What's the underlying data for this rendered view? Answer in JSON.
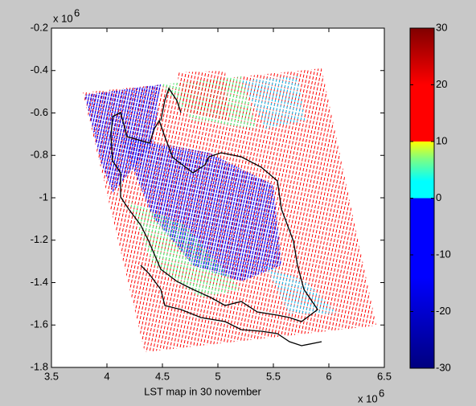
{
  "chart_data": {
    "type": "map",
    "xlabel": "LST map in 30 november",
    "x_multiplier": {
      "base": "x 10",
      "power": "6"
    },
    "y_multiplier": {
      "base": "x 10",
      "power": "6"
    },
    "xlim": [
      3.5,
      6.5
    ],
    "xticks": [
      3.5,
      4,
      4.5,
      5,
      5.5,
      6,
      6.5
    ],
    "ylim": [
      -1.8,
      -0.2
    ],
    "yticks": [
      -1.8,
      -1.6,
      -1.4,
      -1.2,
      -1,
      -0.8,
      -0.6,
      -0.4,
      -0.2
    ],
    "colorbar": {
      "lim": [
        -30,
        30
      ],
      "ticks": [
        -30,
        -20,
        -10,
        0,
        10,
        20,
        30
      ],
      "stops": [
        {
          "value": -30,
          "color": "#00007f"
        },
        {
          "value": -14,
          "color": "#0000ff"
        },
        {
          "value": 0,
          "color": "#0000ff"
        },
        {
          "value": 0,
          "color": "#00ffff"
        },
        {
          "value": 3,
          "color": "#00ffff"
        },
        {
          "value": 7,
          "color": "#80ff80"
        },
        {
          "value": 10,
          "color": "#ffff00"
        },
        {
          "value": 10,
          "color": "#ff0000"
        },
        {
          "value": 20,
          "color": "#ff0000"
        },
        {
          "value": 30,
          "color": "#800000"
        }
      ]
    }
  }
}
